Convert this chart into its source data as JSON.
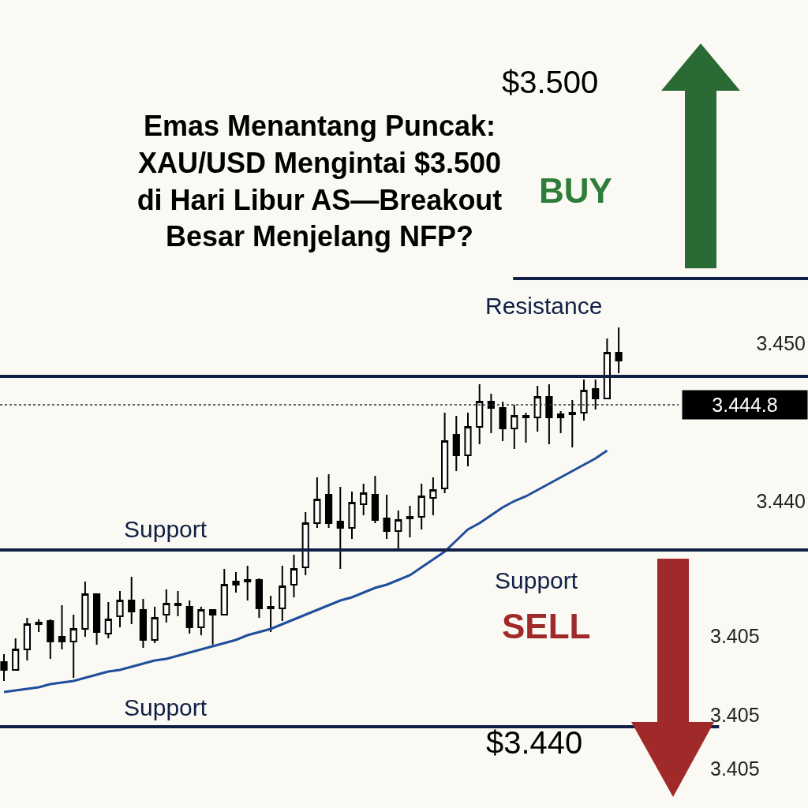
{
  "chart_data": {
    "type": "candlestick",
    "title": "Emas Menantang Puncak:\nXAU/USD Mengintai $3.500\ndi Hari Libur AS—Breakout\nBesar Menjelang NFP?",
    "categories": [
      null,
      null,
      null,
      null,
      null,
      null,
      null,
      null,
      null,
      null,
      null,
      null,
      null,
      null,
      null,
      null,
      null,
      null,
      null,
      null,
      null,
      null,
      null,
      null,
      null,
      null,
      null,
      null,
      null,
      null,
      null,
      null,
      null,
      null,
      null,
      null,
      null,
      null,
      null,
      null,
      null,
      null,
      null,
      null,
      null,
      null,
      null,
      null,
      null,
      null,
      null,
      null,
      null,
      null
    ],
    "ohlc": [
      [
        3.4298,
        3.4303,
        3.4286,
        3.4293
      ],
      [
        3.4293,
        3.4313,
        3.4293,
        3.4306
      ],
      [
        3.4306,
        3.4326,
        3.4299,
        3.4322
      ],
      [
        3.4323,
        3.4325,
        3.4317,
        3.4322
      ],
      [
        3.4324,
        3.4325,
        3.43,
        3.4311
      ],
      [
        3.4314,
        3.4334,
        3.4306,
        3.4311
      ],
      [
        3.4311,
        3.4328,
        3.4288,
        3.4319
      ],
      [
        3.4319,
        3.4349,
        3.4314,
        3.4341
      ],
      [
        3.4341,
        3.4341,
        3.4309,
        3.4317
      ],
      [
        3.4316,
        3.4336,
        3.4313,
        3.4325
      ],
      [
        3.4327,
        3.4343,
        3.432,
        3.4337
      ],
      [
        3.4337,
        3.4352,
        3.4322,
        3.433
      ],
      [
        3.4331,
        3.4338,
        3.4307,
        3.4312
      ],
      [
        3.4312,
        3.4333,
        3.431,
        3.4326
      ],
      [
        3.4328,
        3.4344,
        3.4323,
        3.4335
      ],
      [
        3.4335,
        3.4343,
        3.4327,
        3.4334
      ],
      [
        3.4333,
        3.4337,
        3.4316,
        3.432
      ],
      [
        3.432,
        3.4333,
        3.4315,
        3.4331
      ],
      [
        3.4331,
        3.4331,
        3.4309,
        3.4328
      ],
      [
        3.4328,
        3.4357,
        3.4328,
        3.4347
      ],
      [
        3.4349,
        3.4355,
        3.4342,
        3.4347
      ],
      [
        3.435,
        3.4359,
        3.4337,
        3.4349
      ],
      [
        3.435,
        3.4351,
        3.4326,
        3.4332
      ],
      [
        3.4333,
        3.434,
        3.4317,
        3.4332
      ],
      [
        3.4332,
        3.4359,
        3.4324,
        3.4346
      ],
      [
        3.4347,
        3.4366,
        3.4339,
        3.4357
      ],
      [
        3.4358,
        3.4393,
        3.4353,
        3.4386
      ],
      [
        3.4386,
        3.4415,
        3.4383,
        3.4401
      ],
      [
        3.4404,
        3.4417,
        3.4383,
        3.4386
      ],
      [
        3.4387,
        3.4409,
        3.4357,
        3.4383
      ],
      [
        3.4383,
        3.4406,
        3.4376,
        3.4399
      ],
      [
        3.4398,
        3.4411,
        3.4391,
        3.4405
      ],
      [
        3.4404,
        3.4416,
        3.4386,
        3.4388
      ],
      [
        3.4389,
        3.4404,
        3.4376,
        3.4381
      ],
      [
        3.4381,
        3.4394,
        3.4369,
        3.4388
      ],
      [
        3.439,
        3.4397,
        3.4377,
        3.4389
      ],
      [
        3.439,
        3.4411,
        3.4382,
        3.4403
      ],
      [
        3.4402,
        3.4415,
        3.4391,
        3.4407
      ],
      [
        3.4408,
        3.4456,
        3.4405,
        3.4438
      ],
      [
        3.4442,
        3.4454,
        3.4419,
        3.4429
      ],
      [
        3.4429,
        3.4456,
        3.4422,
        3.4447
      ],
      [
        3.4447,
        3.4474,
        3.4436,
        3.4463
      ],
      [
        3.4463,
        3.4468,
        3.4443,
        3.4459
      ],
      [
        3.4459,
        3.4463,
        3.4438,
        3.4446
      ],
      [
        3.4446,
        3.4461,
        3.4433,
        3.4454
      ],
      [
        3.4454,
        3.4456,
        3.4437,
        3.4453
      ],
      [
        3.4453,
        3.4473,
        3.4444,
        3.4466
      ],
      [
        3.4466,
        3.4474,
        3.4436,
        3.4453
      ],
      [
        3.4455,
        3.4457,
        3.4443,
        3.4453
      ],
      [
        3.4456,
        3.4464,
        3.4434,
        3.4455
      ],
      [
        3.4456,
        3.4477,
        3.4451,
        3.447
      ],
      [
        3.4471,
        3.4477,
        3.4458,
        3.4465
      ],
      [
        3.4465,
        3.4503,
        3.4465,
        3.4494
      ],
      [
        3.4494,
        3.451,
        3.4481,
        3.4489
      ]
    ],
    "series": [
      {
        "type": "line",
        "color": "#1f4e9c",
        "values": [
          3.4279,
          3.428,
          3.4281,
          3.4282,
          3.4284,
          3.4285,
          3.4286,
          3.4288,
          3.429,
          3.4292,
          3.4293,
          3.4295,
          3.4297,
          3.4299,
          3.43,
          3.4302,
          3.4304,
          3.4306,
          3.4308,
          3.431,
          3.4312,
          3.4315,
          3.4317,
          3.4319,
          3.4322,
          3.4325,
          3.4328,
          3.4331,
          3.4334,
          3.4337,
          3.4339,
          3.4342,
          3.4345,
          3.4347,
          3.435,
          3.4353,
          3.4358,
          3.4363,
          3.4368,
          3.4375,
          3.4382,
          3.4386,
          3.4391,
          3.4396,
          3.44,
          3.4403,
          3.4407,
          3.4411,
          3.4415,
          3.4419,
          3.4423,
          3.4427,
          3.4432,
          null
        ]
      }
    ],
    "ylim": [
      3.42055,
      3.47175
    ],
    "yticks": [
      {
        "value": 3.45,
        "label": "3.450"
      },
      {
        "value": 3.44,
        "label": "3.440"
      }
    ],
    "tick_labels": "y",
    "ref_lines": [
      {
        "axis": "y",
        "value": 3.4541,
        "color": "#0f1f45"
      },
      {
        "axis": "y",
        "value": 3.4479,
        "label": "Resistance",
        "color": "#0f1f45"
      },
      {
        "axis": "y",
        "value": 3.4461,
        "label": "3.444.8",
        "color": "#333333",
        "line_style": "dotted"
      },
      {
        "axis": "y",
        "value": 3.4369,
        "label": "Support",
        "color": "#0f1f45"
      },
      {
        "axis": "y",
        "value": 3.4257,
        "label": "Support",
        "color": "#0f1f45"
      }
    ],
    "annotations": [
      "BUY",
      "SELL",
      "$3.500",
      "$3.440",
      {
        "text": "Support",
        "y": 3.4369
      },
      "3.405",
      "3.405",
      "3.405"
    ]
  }
}
